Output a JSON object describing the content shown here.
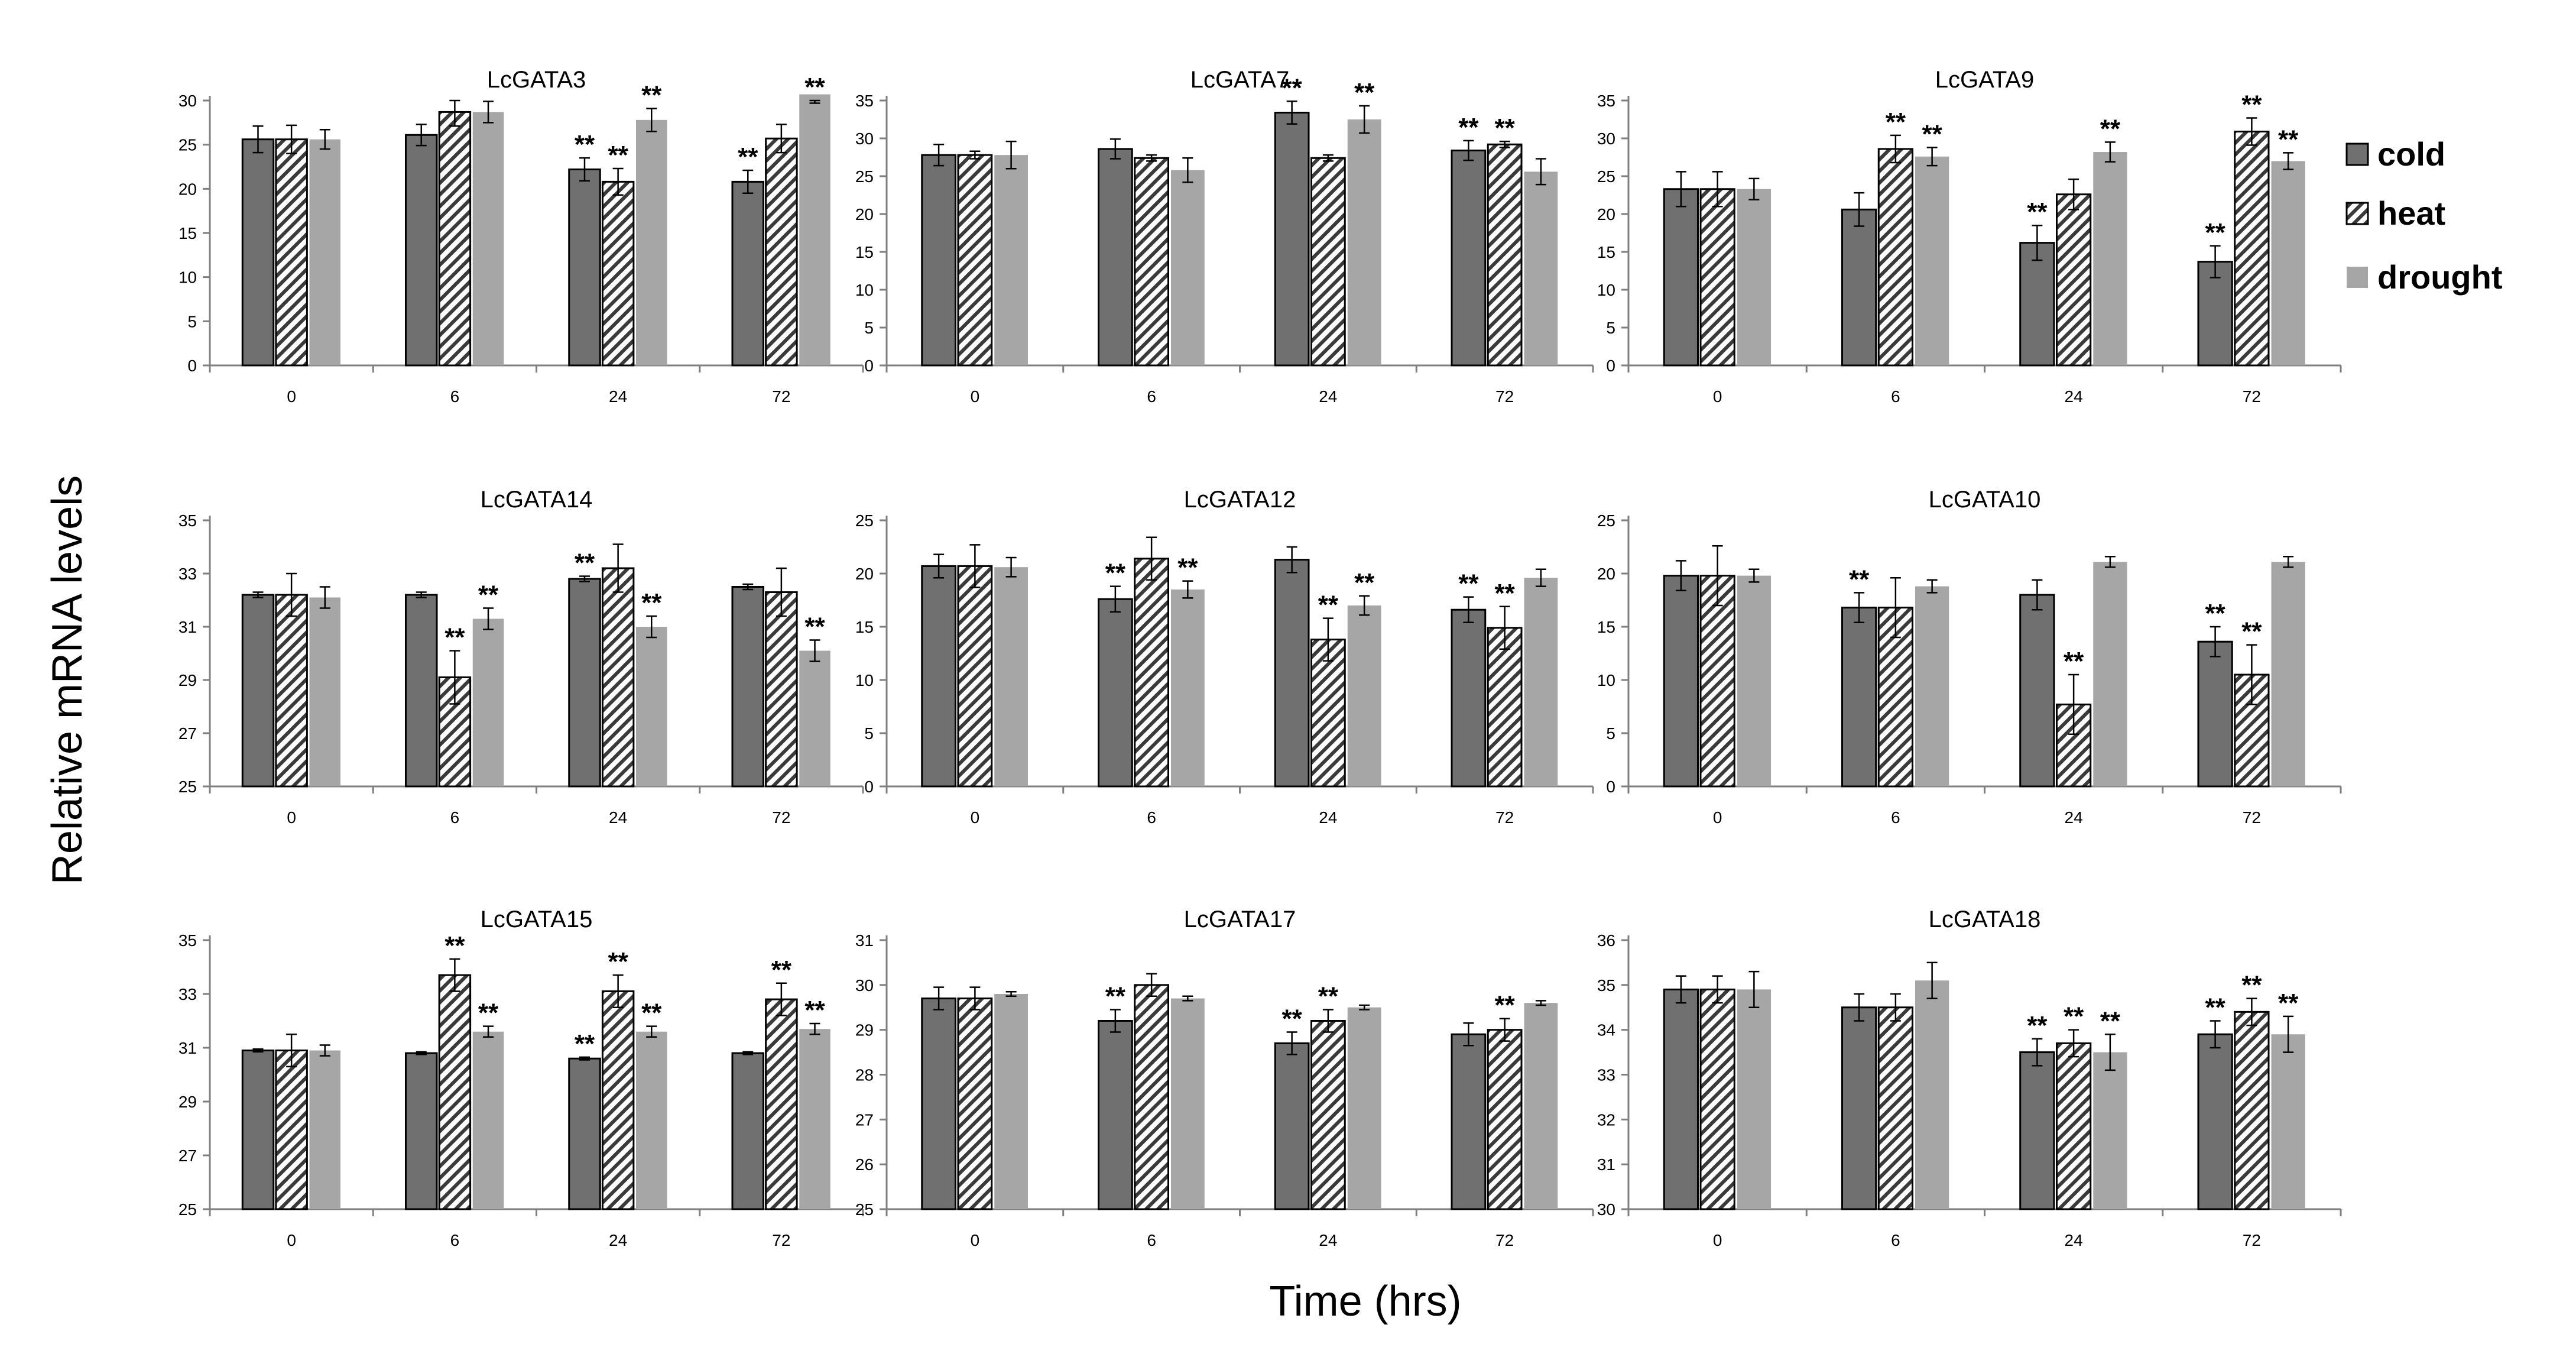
{
  "figure": {
    "ylabel": "Relative mRNA levels",
    "xlabel": "Time (hrs)"
  },
  "legend": {
    "position": "right",
    "items": [
      {
        "label": "cold",
        "pattern": "dark-solid"
      },
      {
        "label": "heat",
        "pattern": "diagonal-hatch"
      },
      {
        "label": "drought",
        "pattern": "light-solid"
      }
    ]
  },
  "colors": {
    "cold": "#707070",
    "heat_stripe": "#3a3a3a",
    "heat_bg": "#ffffff",
    "drought": "#a6a6a6",
    "axis": "#7f7f7f"
  },
  "chart_data": [
    {
      "type": "bar",
      "title": "LcGATA3",
      "categories": [
        "0",
        "6",
        "24",
        "72"
      ],
      "ylim": [
        0,
        30
      ],
      "yticks": [
        0,
        5,
        10,
        15,
        20,
        25,
        30
      ],
      "grid": false,
      "series": [
        {
          "name": "cold",
          "values": [
            25.6,
            26.1,
            22.2,
            20.8
          ],
          "errors": [
            1.5,
            1.2,
            1.3,
            1.3
          ],
          "sig": [
            false,
            false,
            true,
            true
          ]
        },
        {
          "name": "heat",
          "values": [
            25.6,
            28.7,
            20.8,
            25.7
          ],
          "errors": [
            1.6,
            1.6,
            1.5,
            1.6
          ],
          "sig": [
            false,
            false,
            true,
            false
          ]
        },
        {
          "name": "drought",
          "values": [
            25.6,
            28.7,
            27.8,
            30.7
          ],
          "errors": [
            1.1,
            1.2,
            1.3,
            1.0
          ],
          "sig": [
            false,
            false,
            true,
            true
          ]
        }
      ]
    },
    {
      "type": "bar",
      "title": "LcGATA7",
      "categories": [
        "0",
        "6",
        "24",
        "72"
      ],
      "ylim": [
        0,
        35
      ],
      "yticks": [
        0,
        5,
        10,
        15,
        20,
        25,
        30,
        35
      ],
      "grid": false,
      "series": [
        {
          "name": "cold",
          "values": [
            27.8,
            28.6,
            33.4,
            28.4
          ],
          "errors": [
            1.4,
            1.3,
            1.5,
            1.3
          ],
          "sig": [
            false,
            false,
            true,
            true
          ]
        },
        {
          "name": "heat",
          "values": [
            27.8,
            27.4,
            27.4,
            29.2
          ],
          "errors": [
            0.5,
            0.4,
            0.4,
            0.4
          ],
          "sig": [
            false,
            false,
            false,
            true
          ]
        },
        {
          "name": "drought",
          "values": [
            27.8,
            25.8,
            32.5,
            25.6
          ],
          "errors": [
            1.8,
            1.6,
            1.8,
            1.7
          ],
          "sig": [
            false,
            false,
            true,
            false
          ]
        }
      ]
    },
    {
      "type": "bar",
      "title": "LcGATA9",
      "categories": [
        "0",
        "6",
        "24",
        "72"
      ],
      "ylim": [
        0,
        35
      ],
      "yticks": [
        0,
        5,
        10,
        15,
        20,
        25,
        30,
        35
      ],
      "grid": false,
      "series": [
        {
          "name": "cold",
          "values": [
            23.3,
            20.6,
            16.2,
            13.7
          ],
          "errors": [
            2.3,
            2.2,
            2.3,
            2.1
          ],
          "sig": [
            false,
            false,
            true,
            true
          ]
        },
        {
          "name": "heat",
          "values": [
            23.3,
            28.6,
            22.6,
            30.9
          ],
          "errors": [
            2.3,
            1.8,
            2.0,
            1.8
          ],
          "sig": [
            false,
            true,
            false,
            true
          ]
        },
        {
          "name": "drought",
          "values": [
            23.3,
            27.6,
            28.2,
            27.0
          ],
          "errors": [
            1.4,
            1.2,
            1.3,
            1.1
          ],
          "sig": [
            false,
            true,
            true,
            true
          ]
        }
      ]
    },
    {
      "type": "bar",
      "title": "LcGATA14",
      "categories": [
        "0",
        "6",
        "24",
        "72"
      ],
      "ylim": [
        25,
        35
      ],
      "yticks": [
        25,
        27,
        29,
        31,
        33,
        35
      ],
      "grid": false,
      "series": [
        {
          "name": "cold",
          "values": [
            32.2,
            32.2,
            32.8,
            32.5
          ],
          "errors": [
            0.1,
            0.1,
            0.1,
            0.1
          ],
          "sig": [
            false,
            false,
            true,
            false
          ]
        },
        {
          "name": "heat",
          "values": [
            32.2,
            29.1,
            33.2,
            32.3
          ],
          "errors": [
            0.8,
            1.0,
            0.9,
            0.9
          ],
          "sig": [
            false,
            true,
            false,
            false
          ]
        },
        {
          "name": "drought",
          "values": [
            32.1,
            31.3,
            31.0,
            30.1
          ],
          "errors": [
            0.4,
            0.4,
            0.4,
            0.4
          ],
          "sig": [
            false,
            true,
            true,
            true
          ]
        }
      ]
    },
    {
      "type": "bar",
      "title": "LcGATA12",
      "categories": [
        "0",
        "6",
        "24",
        "72"
      ],
      "ylim": [
        0,
        25
      ],
      "yticks": [
        0,
        5,
        10,
        15,
        20,
        25
      ],
      "grid": false,
      "series": [
        {
          "name": "cold",
          "values": [
            20.7,
            17.6,
            21.3,
            16.6
          ],
          "errors": [
            1.1,
            1.2,
            1.2,
            1.2
          ],
          "sig": [
            false,
            true,
            false,
            true
          ]
        },
        {
          "name": "heat",
          "values": [
            20.7,
            21.4,
            13.8,
            14.9
          ],
          "errors": [
            2.0,
            2.0,
            2.0,
            2.0
          ],
          "sig": [
            false,
            false,
            true,
            true
          ]
        },
        {
          "name": "drought",
          "values": [
            20.6,
            18.5,
            17.0,
            19.6
          ],
          "errors": [
            0.9,
            0.8,
            0.9,
            0.8
          ],
          "sig": [
            false,
            true,
            true,
            false
          ]
        }
      ]
    },
    {
      "type": "bar",
      "title": "LcGATA10",
      "categories": [
        "0",
        "6",
        "24",
        "72"
      ],
      "ylim": [
        0,
        25
      ],
      "yticks": [
        0,
        5,
        10,
        15,
        20,
        25
      ],
      "grid": false,
      "series": [
        {
          "name": "cold",
          "values": [
            19.8,
            16.8,
            18.0,
            13.6
          ],
          "errors": [
            1.4,
            1.4,
            1.4,
            1.4
          ],
          "sig": [
            false,
            true,
            false,
            true
          ]
        },
        {
          "name": "heat",
          "values": [
            19.8,
            16.8,
            7.7,
            10.5
          ],
          "errors": [
            2.8,
            2.8,
            2.8,
            2.8
          ],
          "sig": [
            false,
            false,
            true,
            true
          ]
        },
        {
          "name": "drought",
          "values": [
            19.8,
            18.8,
            21.1,
            21.1
          ],
          "errors": [
            0.6,
            0.6,
            0.5,
            0.5
          ],
          "sig": [
            false,
            false,
            false,
            false
          ]
        }
      ]
    },
    {
      "type": "bar",
      "title": "LcGATA15",
      "categories": [
        "0",
        "6",
        "24",
        "72"
      ],
      "ylim": [
        25,
        35
      ],
      "yticks": [
        25,
        27,
        29,
        31,
        33,
        35
      ],
      "grid": false,
      "series": [
        {
          "name": "cold",
          "values": [
            30.9,
            30.8,
            30.6,
            30.8
          ],
          "errors": [
            0.05,
            0.05,
            0.05,
            0.05
          ],
          "sig": [
            false,
            false,
            true,
            false
          ]
        },
        {
          "name": "heat",
          "values": [
            30.9,
            33.7,
            33.1,
            32.8
          ],
          "errors": [
            0.6,
            0.6,
            0.6,
            0.6
          ],
          "sig": [
            false,
            true,
            true,
            true
          ]
        },
        {
          "name": "drought",
          "values": [
            30.9,
            31.6,
            31.6,
            31.7
          ],
          "errors": [
            0.2,
            0.2,
            0.2,
            0.2
          ],
          "sig": [
            false,
            true,
            true,
            true
          ]
        }
      ]
    },
    {
      "type": "bar",
      "title": "LcGATA17",
      "categories": [
        "0",
        "6",
        "24",
        "72"
      ],
      "ylim": [
        25,
        31
      ],
      "yticks": [
        25,
        26,
        27,
        28,
        29,
        30,
        31
      ],
      "grid": false,
      "series": [
        {
          "name": "cold",
          "values": [
            29.7,
            29.2,
            28.7,
            28.9
          ],
          "errors": [
            0.25,
            0.25,
            0.25,
            0.25
          ],
          "sig": [
            false,
            true,
            true,
            false
          ]
        },
        {
          "name": "heat",
          "values": [
            29.7,
            30.0,
            29.2,
            29.0
          ],
          "errors": [
            0.25,
            0.25,
            0.25,
            0.25
          ],
          "sig": [
            false,
            false,
            true,
            true
          ]
        },
        {
          "name": "drought",
          "values": [
            29.8,
            29.7,
            29.5,
            29.6
          ],
          "errors": [
            0.05,
            0.05,
            0.05,
            0.05
          ],
          "sig": [
            false,
            false,
            false,
            false
          ]
        }
      ]
    },
    {
      "type": "bar",
      "title": "LcGATA18",
      "categories": [
        "0",
        "6",
        "24",
        "72"
      ],
      "ylim": [
        30,
        36
      ],
      "yticks": [
        30,
        31,
        32,
        33,
        34,
        35,
        36
      ],
      "grid": false,
      "series": [
        {
          "name": "cold",
          "values": [
            34.9,
            34.5,
            33.5,
            33.9
          ],
          "errors": [
            0.3,
            0.3,
            0.3,
            0.3
          ],
          "sig": [
            false,
            false,
            true,
            true
          ]
        },
        {
          "name": "heat",
          "values": [
            34.9,
            34.5,
            33.7,
            34.4
          ],
          "errors": [
            0.3,
            0.3,
            0.3,
            0.3
          ],
          "sig": [
            false,
            false,
            true,
            true
          ]
        },
        {
          "name": "drought",
          "values": [
            34.9,
            35.1,
            33.5,
            33.9
          ],
          "errors": [
            0.4,
            0.4,
            0.4,
            0.4
          ],
          "sig": [
            false,
            false,
            true,
            true
          ]
        }
      ]
    }
  ]
}
